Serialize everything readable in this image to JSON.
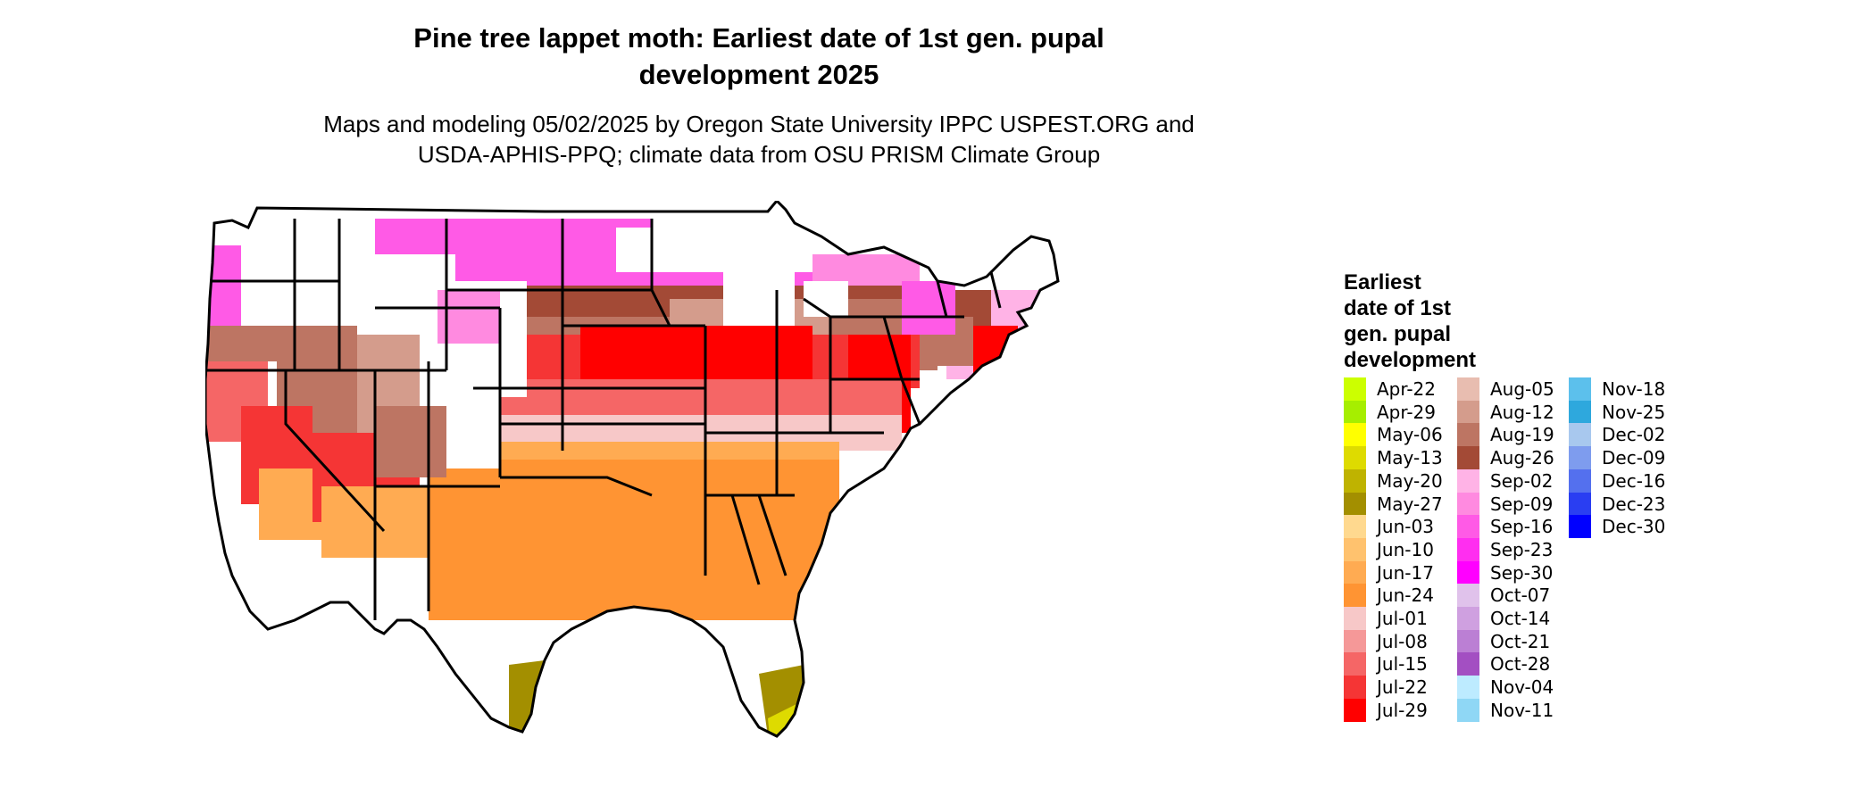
{
  "title_line1": "Pine tree lappet moth: Earliest date of 1st gen. pupal",
  "title_line2": "development 2025",
  "subtitle_line1": "Maps and modeling 05/02/2025 by Oregon State University IPPC USPEST.ORG and",
  "subtitle_line2": "USDA-APHIS-PPQ; climate data from OSU PRISM Climate Group",
  "legend": {
    "title_lines": [
      "Earliest",
      "date of 1st",
      "gen. pupal",
      "development"
    ],
    "items": [
      {
        "label": "Apr-22",
        "color": "#ccff00"
      },
      {
        "label": "Apr-29",
        "color": "#a6ee00"
      },
      {
        "label": "May-06",
        "color": "#ffff00"
      },
      {
        "label": "May-13",
        "color": "#dedb00"
      },
      {
        "label": "May-20",
        "color": "#bfb300"
      },
      {
        "label": "May-27",
        "color": "#a38f00"
      },
      {
        "label": "Jun-03",
        "color": "#ffd98f"
      },
      {
        "label": "Jun-10",
        "color": "#ffc26e"
      },
      {
        "label": "Jun-17",
        "color": "#ffab52"
      },
      {
        "label": "Jun-24",
        "color": "#ff9433"
      },
      {
        "label": "Jul-01",
        "color": "#f7c8c8"
      },
      {
        "label": "Jul-08",
        "color": "#f59898"
      },
      {
        "label": "Jul-15",
        "color": "#f56666"
      },
      {
        "label": "Jul-22",
        "color": "#f53535"
      },
      {
        "label": "Jul-29",
        "color": "#ff0000"
      },
      {
        "label": "Aug-05",
        "color": "#e8bdb0"
      },
      {
        "label": "Aug-12",
        "color": "#d49c8c"
      },
      {
        "label": "Aug-19",
        "color": "#bd7563"
      },
      {
        "label": "Aug-26",
        "color": "#a34a36"
      },
      {
        "label": "Sep-02",
        "color": "#ffb3e6"
      },
      {
        "label": "Sep-09",
        "color": "#ff8ae0"
      },
      {
        "label": "Sep-16",
        "color": "#ff5ae6"
      },
      {
        "label": "Sep-23",
        "color": "#ff2ef0"
      },
      {
        "label": "Sep-30",
        "color": "#ff00ff"
      },
      {
        "label": "Oct-07",
        "color": "#e0c2eb"
      },
      {
        "label": "Oct-14",
        "color": "#cfa0e0"
      },
      {
        "label": "Oct-21",
        "color": "#bb7fd4"
      },
      {
        "label": "Oct-28",
        "color": "#a34fc2"
      },
      {
        "label": "Nov-04",
        "color": "#bdebff"
      },
      {
        "label": "Nov-11",
        "color": "#8fd7f5"
      },
      {
        "label": "Nov-18",
        "color": "#5cc0ec"
      },
      {
        "label": "Nov-25",
        "color": "#2ea8dd"
      },
      {
        "label": "Dec-02",
        "color": "#a8c8ee"
      },
      {
        "label": "Dec-09",
        "color": "#7e9cee"
      },
      {
        "label": "Dec-16",
        "color": "#5470ee"
      },
      {
        "label": "Dec-23",
        "color": "#2a3ef2"
      },
      {
        "label": "Dec-30",
        "color": "#0000ff"
      }
    ]
  }
}
